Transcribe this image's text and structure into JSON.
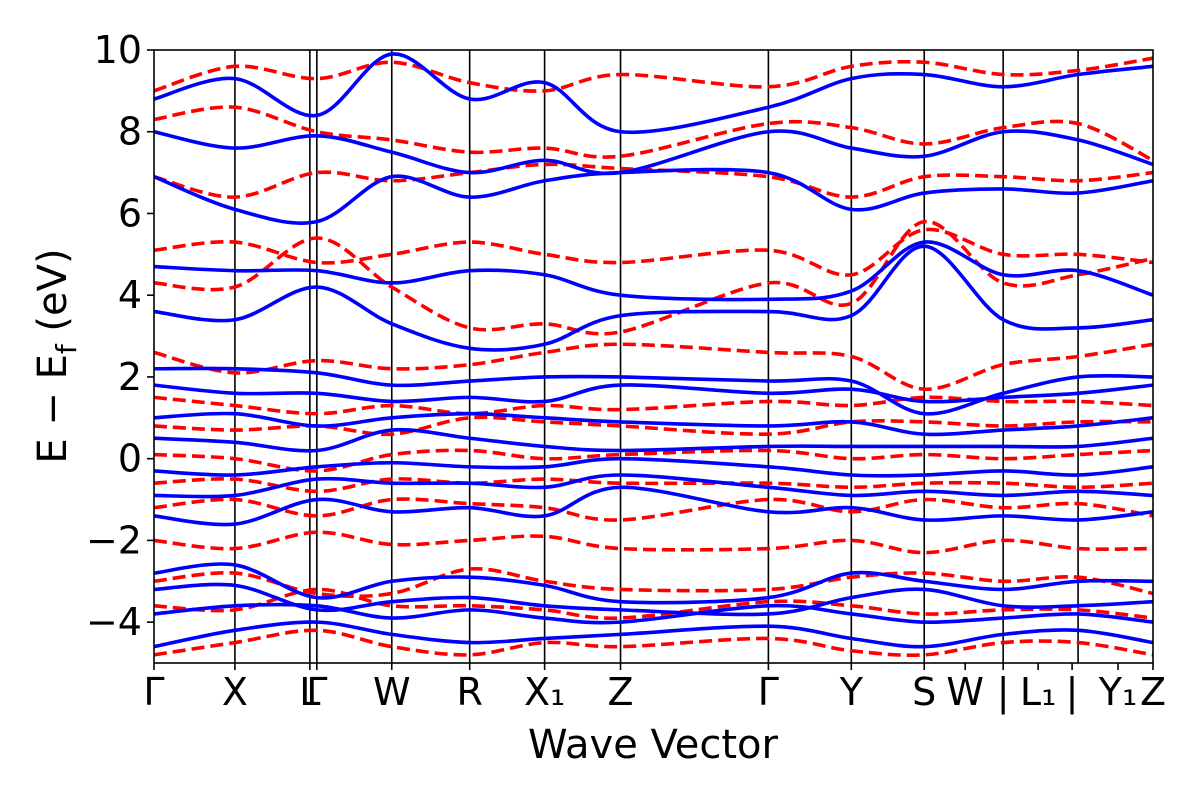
{
  "chart_data": {
    "type": "line",
    "title": "",
    "xlabel": "Wave Vector",
    "ylabel": "E − E_f (eV)",
    "ylabel_parts": {
      "main": "E − E",
      "sub": "f",
      "unit": " (eV)"
    },
    "ylim": [
      -5,
      10
    ],
    "yticks": [
      -4,
      -2,
      0,
      2,
      4,
      6,
      8,
      10
    ],
    "ytick_labels": [
      "−4",
      "−2",
      "0",
      "2",
      "4",
      "6",
      "8",
      "10"
    ],
    "xlim": [
      0,
      1
    ],
    "high_symmetry_points": [
      {
        "x": 0.0,
        "label": "Γ"
      },
      {
        "x": 0.081,
        "label": "X"
      },
      {
        "x": 0.156,
        "label": "L"
      },
      {
        "x": 0.163,
        "label": "Γ"
      },
      {
        "x": 0.238,
        "label": "W"
      },
      {
        "x": 0.316,
        "label": "R"
      },
      {
        "x": 0.391,
        "label": "X₁"
      },
      {
        "x": 0.467,
        "label": "Z"
      },
      {
        "x": 0.615,
        "label": "Γ"
      },
      {
        "x": 0.698,
        "label": "Y"
      },
      {
        "x": 0.771,
        "label": "S"
      },
      {
        "x": 0.812,
        "label": "W"
      },
      {
        "x": 0.85,
        "label": "|"
      },
      {
        "x": 0.885,
        "label": "L₁"
      },
      {
        "x": 0.919,
        "label": "|"
      },
      {
        "x": 0.965,
        "label": "Y₁"
      },
      {
        "x": 1.0,
        "label": "Z"
      }
    ],
    "separator_lines_x": [
      0.081,
      0.156,
      0.163,
      0.238,
      0.316,
      0.391,
      0.467,
      0.615,
      0.698,
      0.771,
      0.85,
      0.925
    ],
    "series": [
      {
        "name": "bands (solid)",
        "color": "#0000ff",
        "style": "solid",
        "knots_x": [
          0,
          0.081,
          0.163,
          0.238,
          0.316,
          0.391,
          0.467,
          0.615,
          0.698,
          0.771,
          0.85,
          0.925,
          1.0
        ],
        "bands": [
          [
            -4.6,
            -4.2,
            -4.0,
            -4.3,
            -4.5,
            -4.4,
            -4.3,
            -4.1,
            -4.4,
            -4.6,
            -4.3,
            -4.2,
            -4.5
          ],
          [
            -3.8,
            -3.6,
            -3.6,
            -3.9,
            -3.7,
            -3.9,
            -4.0,
            -3.6,
            -3.8,
            -4.0,
            -3.9,
            -3.8,
            -4.0
          ],
          [
            -3.2,
            -3.1,
            -3.7,
            -3.5,
            -3.4,
            -3.6,
            -3.7,
            -3.8,
            -3.4,
            -3.2,
            -3.6,
            -3.6,
            -3.5
          ],
          [
            -2.8,
            -2.6,
            -3.4,
            -3.0,
            -2.9,
            -3.1,
            -3.5,
            -3.4,
            -2.8,
            -3.0,
            -3.2,
            -3.0,
            -3.0
          ],
          [
            -1.4,
            -1.6,
            -1.0,
            -1.3,
            -1.2,
            -1.4,
            -0.7,
            -1.3,
            -1.2,
            -1.5,
            -1.4,
            -1.5,
            -1.3
          ],
          [
            -0.9,
            -0.9,
            -0.5,
            -0.6,
            -0.6,
            -0.7,
            -0.4,
            -0.7,
            -0.9,
            -0.8,
            -0.9,
            -0.8,
            -0.9
          ],
          [
            -0.3,
            -0.4,
            -0.2,
            -0.1,
            -0.2,
            -0.2,
            0.0,
            -0.2,
            -0.4,
            -0.4,
            -0.3,
            -0.4,
            -0.2
          ],
          [
            0.5,
            0.4,
            0.2,
            0.7,
            0.5,
            0.3,
            0.2,
            0.3,
            0.3,
            0.3,
            0.3,
            0.3,
            0.5
          ],
          [
            1.0,
            1.1,
            0.8,
            1.0,
            1.1,
            1.0,
            0.9,
            0.8,
            0.9,
            0.6,
            0.7,
            0.8,
            1.0
          ],
          [
            1.8,
            1.6,
            1.6,
            1.4,
            1.5,
            1.4,
            1.8,
            1.6,
            1.7,
            1.4,
            1.5,
            1.6,
            1.8
          ],
          [
            2.2,
            2.2,
            2.1,
            1.8,
            1.9,
            2.0,
            2.0,
            1.9,
            1.9,
            1.1,
            1.6,
            2.0,
            2.0
          ],
          [
            3.6,
            3.4,
            4.2,
            3.3,
            2.7,
            2.8,
            3.5,
            3.6,
            3.5,
            5.2,
            3.4,
            3.2,
            3.4
          ],
          [
            4.7,
            4.6,
            4.6,
            4.3,
            4.6,
            4.5,
            4.0,
            3.9,
            4.1,
            5.3,
            4.5,
            4.6,
            4.0
          ],
          [
            6.9,
            6.1,
            5.8,
            6.9,
            6.4,
            6.8,
            7.0,
            7.0,
            6.1,
            6.5,
            6.6,
            6.5,
            6.8
          ],
          [
            8.0,
            7.6,
            7.9,
            7.5,
            7.0,
            7.3,
            7.0,
            8.0,
            7.6,
            7.4,
            8.0,
            7.8,
            7.2
          ],
          [
            8.8,
            9.3,
            8.4,
            9.9,
            8.8,
            9.2,
            8.0,
            8.6,
            9.3,
            9.4,
            9.1,
            9.4,
            9.6
          ]
        ]
      },
      {
        "name": "bands (dashed)",
        "color": "#ff0000",
        "style": "dashed",
        "knots_x": [
          0,
          0.081,
          0.163,
          0.238,
          0.316,
          0.391,
          0.467,
          0.615,
          0.698,
          0.771,
          0.85,
          0.925,
          1.0
        ],
        "bands": [
          [
            -4.8,
            -4.5,
            -4.2,
            -4.6,
            -4.8,
            -4.5,
            -4.6,
            -4.4,
            -4.7,
            -4.8,
            -4.5,
            -4.5,
            -4.8
          ],
          [
            -3.6,
            -3.7,
            -3.2,
            -3.6,
            -3.6,
            -3.7,
            -3.9,
            -3.5,
            -3.6,
            -3.8,
            -3.7,
            -3.7,
            -3.9
          ],
          [
            -3.0,
            -2.8,
            -3.3,
            -3.3,
            -2.7,
            -3.0,
            -3.2,
            -3.2,
            -2.9,
            -2.8,
            -3.0,
            -2.9,
            -3.3
          ],
          [
            -2.0,
            -2.2,
            -1.8,
            -2.1,
            -2.0,
            -1.9,
            -2.2,
            -2.2,
            -2.0,
            -2.3,
            -2.0,
            -2.2,
            -2.2
          ],
          [
            -1.2,
            -1.0,
            -1.4,
            -1.0,
            -1.1,
            -1.2,
            -1.5,
            -1.0,
            -1.3,
            -1.0,
            -1.2,
            -1.1,
            -1.4
          ],
          [
            -0.6,
            -0.5,
            -0.8,
            -0.5,
            -0.6,
            -0.5,
            -0.6,
            -0.6,
            -0.7,
            -0.6,
            -0.6,
            -0.7,
            -0.6
          ],
          [
            0.1,
            0.0,
            -0.3,
            0.1,
            0.2,
            0.0,
            0.1,
            0.2,
            0.0,
            0.1,
            0.0,
            0.1,
            0.2
          ],
          [
            0.8,
            0.7,
            0.8,
            0.6,
            1.0,
            0.9,
            0.8,
            0.6,
            0.9,
            0.9,
            0.8,
            0.9,
            0.9
          ],
          [
            1.5,
            1.3,
            1.1,
            1.3,
            1.1,
            1.3,
            1.2,
            1.4,
            1.3,
            1.5,
            1.4,
            1.4,
            1.3
          ],
          [
            2.6,
            2.1,
            2.4,
            2.2,
            2.3,
            2.6,
            2.8,
            2.6,
            2.5,
            1.7,
            2.3,
            2.5,
            2.8
          ],
          [
            4.3,
            4.2,
            5.4,
            4.2,
            3.2,
            3.3,
            3.1,
            4.3,
            3.8,
            5.8,
            4.3,
            4.5,
            4.9
          ],
          [
            5.1,
            5.3,
            4.8,
            5.0,
            5.3,
            5.0,
            4.8,
            5.1,
            4.5,
            5.6,
            5.0,
            5.0,
            4.8
          ],
          [
            6.9,
            6.4,
            7.0,
            6.8,
            7.0,
            7.2,
            7.1,
            6.9,
            6.4,
            6.9,
            6.9,
            6.8,
            7.0
          ],
          [
            8.3,
            8.6,
            8.0,
            7.8,
            7.5,
            7.6,
            7.4,
            8.2,
            8.1,
            7.7,
            8.1,
            8.2,
            7.3
          ],
          [
            9.0,
            9.6,
            9.3,
            9.7,
            9.2,
            9.0,
            9.4,
            9.1,
            9.6,
            9.7,
            9.4,
            9.5,
            9.8
          ]
        ]
      }
    ]
  }
}
